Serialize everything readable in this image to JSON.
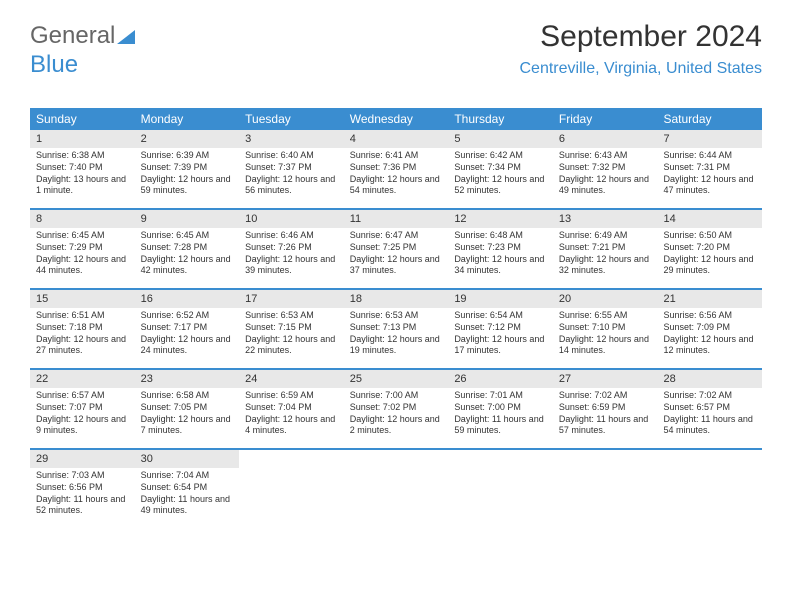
{
  "logo": {
    "part1": "General",
    "part2": "Blue"
  },
  "header": {
    "month_title": "September 2024",
    "location": "Centreville, Virginia, United States"
  },
  "colors": {
    "header_bg": "#3a8dd0",
    "header_text": "#ffffff",
    "daynum_bg": "#e8e8e8",
    "text": "#333333",
    "accent": "#3a8dd0"
  },
  "day_names": [
    "Sunday",
    "Monday",
    "Tuesday",
    "Wednesday",
    "Thursday",
    "Friday",
    "Saturday"
  ],
  "weeks": [
    [
      {
        "n": "1",
        "sr": "Sunrise: 6:38 AM",
        "ss": "Sunset: 7:40 PM",
        "dl": "Daylight: 13 hours and 1 minute."
      },
      {
        "n": "2",
        "sr": "Sunrise: 6:39 AM",
        "ss": "Sunset: 7:39 PM",
        "dl": "Daylight: 12 hours and 59 minutes."
      },
      {
        "n": "3",
        "sr": "Sunrise: 6:40 AM",
        "ss": "Sunset: 7:37 PM",
        "dl": "Daylight: 12 hours and 56 minutes."
      },
      {
        "n": "4",
        "sr": "Sunrise: 6:41 AM",
        "ss": "Sunset: 7:36 PM",
        "dl": "Daylight: 12 hours and 54 minutes."
      },
      {
        "n": "5",
        "sr": "Sunrise: 6:42 AM",
        "ss": "Sunset: 7:34 PM",
        "dl": "Daylight: 12 hours and 52 minutes."
      },
      {
        "n": "6",
        "sr": "Sunrise: 6:43 AM",
        "ss": "Sunset: 7:32 PM",
        "dl": "Daylight: 12 hours and 49 minutes."
      },
      {
        "n": "7",
        "sr": "Sunrise: 6:44 AM",
        "ss": "Sunset: 7:31 PM",
        "dl": "Daylight: 12 hours and 47 minutes."
      }
    ],
    [
      {
        "n": "8",
        "sr": "Sunrise: 6:45 AM",
        "ss": "Sunset: 7:29 PM",
        "dl": "Daylight: 12 hours and 44 minutes."
      },
      {
        "n": "9",
        "sr": "Sunrise: 6:45 AM",
        "ss": "Sunset: 7:28 PM",
        "dl": "Daylight: 12 hours and 42 minutes."
      },
      {
        "n": "10",
        "sr": "Sunrise: 6:46 AM",
        "ss": "Sunset: 7:26 PM",
        "dl": "Daylight: 12 hours and 39 minutes."
      },
      {
        "n": "11",
        "sr": "Sunrise: 6:47 AM",
        "ss": "Sunset: 7:25 PM",
        "dl": "Daylight: 12 hours and 37 minutes."
      },
      {
        "n": "12",
        "sr": "Sunrise: 6:48 AM",
        "ss": "Sunset: 7:23 PM",
        "dl": "Daylight: 12 hours and 34 minutes."
      },
      {
        "n": "13",
        "sr": "Sunrise: 6:49 AM",
        "ss": "Sunset: 7:21 PM",
        "dl": "Daylight: 12 hours and 32 minutes."
      },
      {
        "n": "14",
        "sr": "Sunrise: 6:50 AM",
        "ss": "Sunset: 7:20 PM",
        "dl": "Daylight: 12 hours and 29 minutes."
      }
    ],
    [
      {
        "n": "15",
        "sr": "Sunrise: 6:51 AM",
        "ss": "Sunset: 7:18 PM",
        "dl": "Daylight: 12 hours and 27 minutes."
      },
      {
        "n": "16",
        "sr": "Sunrise: 6:52 AM",
        "ss": "Sunset: 7:17 PM",
        "dl": "Daylight: 12 hours and 24 minutes."
      },
      {
        "n": "17",
        "sr": "Sunrise: 6:53 AM",
        "ss": "Sunset: 7:15 PM",
        "dl": "Daylight: 12 hours and 22 minutes."
      },
      {
        "n": "18",
        "sr": "Sunrise: 6:53 AM",
        "ss": "Sunset: 7:13 PM",
        "dl": "Daylight: 12 hours and 19 minutes."
      },
      {
        "n": "19",
        "sr": "Sunrise: 6:54 AM",
        "ss": "Sunset: 7:12 PM",
        "dl": "Daylight: 12 hours and 17 minutes."
      },
      {
        "n": "20",
        "sr": "Sunrise: 6:55 AM",
        "ss": "Sunset: 7:10 PM",
        "dl": "Daylight: 12 hours and 14 minutes."
      },
      {
        "n": "21",
        "sr": "Sunrise: 6:56 AM",
        "ss": "Sunset: 7:09 PM",
        "dl": "Daylight: 12 hours and 12 minutes."
      }
    ],
    [
      {
        "n": "22",
        "sr": "Sunrise: 6:57 AM",
        "ss": "Sunset: 7:07 PM",
        "dl": "Daylight: 12 hours and 9 minutes."
      },
      {
        "n": "23",
        "sr": "Sunrise: 6:58 AM",
        "ss": "Sunset: 7:05 PM",
        "dl": "Daylight: 12 hours and 7 minutes."
      },
      {
        "n": "24",
        "sr": "Sunrise: 6:59 AM",
        "ss": "Sunset: 7:04 PM",
        "dl": "Daylight: 12 hours and 4 minutes."
      },
      {
        "n": "25",
        "sr": "Sunrise: 7:00 AM",
        "ss": "Sunset: 7:02 PM",
        "dl": "Daylight: 12 hours and 2 minutes."
      },
      {
        "n": "26",
        "sr": "Sunrise: 7:01 AM",
        "ss": "Sunset: 7:00 PM",
        "dl": "Daylight: 11 hours and 59 minutes."
      },
      {
        "n": "27",
        "sr": "Sunrise: 7:02 AM",
        "ss": "Sunset: 6:59 PM",
        "dl": "Daylight: 11 hours and 57 minutes."
      },
      {
        "n": "28",
        "sr": "Sunrise: 7:02 AM",
        "ss": "Sunset: 6:57 PM",
        "dl": "Daylight: 11 hours and 54 minutes."
      }
    ],
    [
      {
        "n": "29",
        "sr": "Sunrise: 7:03 AM",
        "ss": "Sunset: 6:56 PM",
        "dl": "Daylight: 11 hours and 52 minutes."
      },
      {
        "n": "30",
        "sr": "Sunrise: 7:04 AM",
        "ss": "Sunset: 6:54 PM",
        "dl": "Daylight: 11 hours and 49 minutes."
      },
      {
        "empty": true
      },
      {
        "empty": true
      },
      {
        "empty": true
      },
      {
        "empty": true
      },
      {
        "empty": true
      }
    ]
  ]
}
